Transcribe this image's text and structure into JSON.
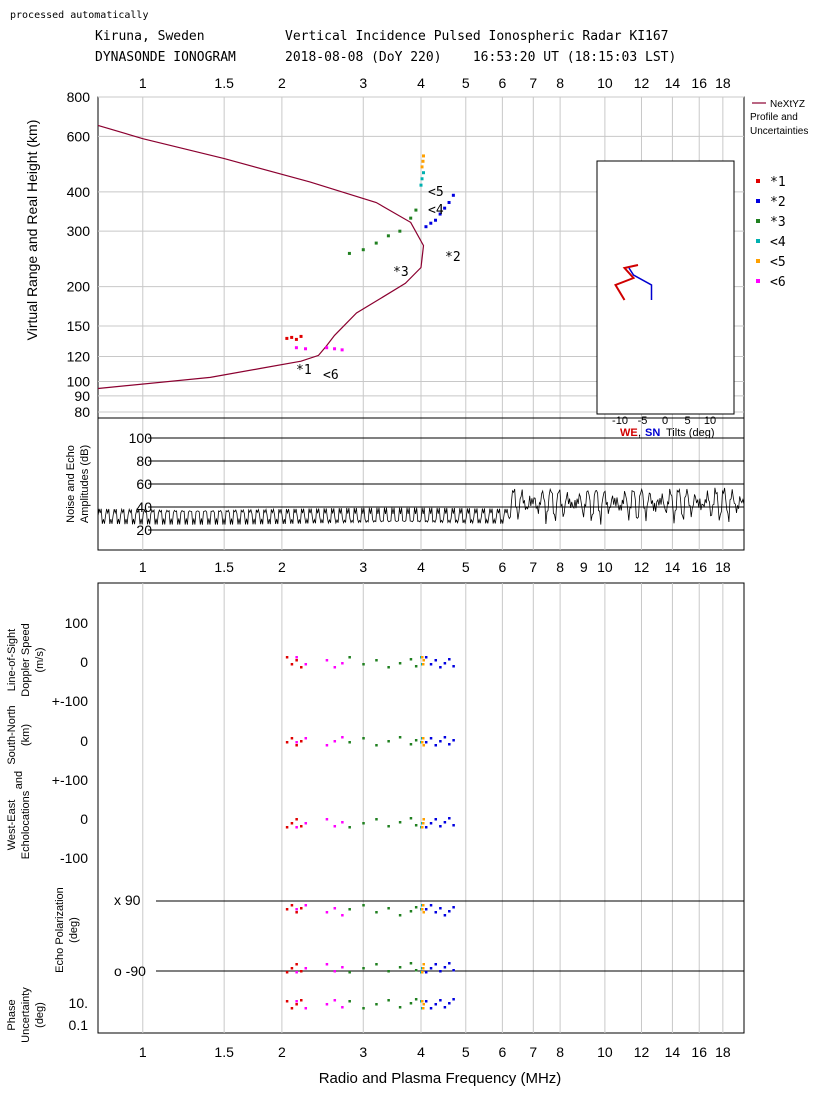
{
  "header": {
    "processed": "processed automatically",
    "station": "Kiruna, Sweden",
    "kind": "DYNASONDE IONOGRAM",
    "radar": "Vertical Incidence Pulsed Ionospheric Radar KI167",
    "datetime": "2018-08-08 (DoY 220)    16:53:20 UT (18:15:03 LST)"
  },
  "axes": {
    "freq_ticks": [
      "1",
      "1.5",
      "2",
      "3",
      "4",
      "5",
      "6",
      "7",
      "8",
      "10",
      "12",
      "14",
      "16",
      "18"
    ],
    "freq_ticks_mid": [
      "1",
      "1.5",
      "2",
      "3",
      "4",
      "5",
      "6",
      "7",
      "8",
      "9",
      "10",
      "12",
      "14",
      "16",
      "18"
    ],
    "freq_values": [
      1,
      1.5,
      2,
      3,
      4,
      5,
      6,
      7,
      8,
      10,
      12,
      14,
      16,
      18
    ],
    "freq_values_mid": [
      1,
      1.5,
      2,
      3,
      4,
      5,
      6,
      7,
      8,
      9,
      10,
      12,
      14,
      16,
      18
    ],
    "height_ticks": [
      "800",
      "600",
      "400",
      "300",
      "200",
      "150",
      "120",
      "100",
      "90",
      "80"
    ],
    "height_values": [
      800,
      600,
      400,
      300,
      200,
      150,
      120,
      100,
      90,
      80
    ],
    "amp_ticks": [
      "100",
      "80",
      "60",
      "40",
      "20"
    ],
    "amp_values": [
      100,
      80,
      60,
      40,
      20
    ],
    "height_label": "Virtual Range and Real Height (km)",
    "amp_label_1": "Noise and Echo",
    "amp_label_2": "Amplitudes (dB)",
    "x_label": "Radio and Plasma Frequency (MHz)",
    "doppler_label_1": "Line-of-Sight",
    "doppler_label_2": "Doppler Speed",
    "doppler_label_3": "(m/s)",
    "doppler_ticks": [
      "100",
      "0",
      "+-100"
    ],
    "sn_label_1": "South-North",
    "sn_label_2": "(km)",
    "sn_ticks": [
      "0",
      "+-100"
    ],
    "we_label_1": "West-East",
    "we_label_2": "Echolocations",
    "we_label_3": "and",
    "we_ticks": [
      "0",
      "-100"
    ],
    "pol_label_1": "Echo Polarization",
    "pol_label_2": "(deg)",
    "pol_x": "x  90",
    "pol_o": "o -90",
    "phase_label_1": "Phase",
    "phase_label_2": "Uncertainty",
    "phase_label_3": "(deg)",
    "phase_ticks": [
      "10.",
      "0.1"
    ]
  },
  "legend": {
    "profile_1": "NeXtYZ",
    "profile_2": "Profile and",
    "profile_3": "Uncertainties",
    "items": [
      {
        "label": "*1",
        "color": "#e00000"
      },
      {
        "label": "*2",
        "color": "#0000e0"
      },
      {
        "label": "*3",
        "color": "#208020"
      },
      {
        "label": "<4",
        "color": "#00b0b0"
      },
      {
        "label": "<5",
        "color": "#ffa000"
      },
      {
        "label": "<6",
        "color": "#ff00ff"
      }
    ]
  },
  "tilts": {
    "ticks": [
      "-10",
      "-5",
      "0",
      "5",
      "10"
    ],
    "we": "WE",
    "comma": ",",
    "sn": "SN",
    "label": "Tilts (deg)",
    "we_color": "#d00000",
    "sn_color": "#0000d0"
  },
  "annotations": {
    "a1": "*1",
    "a2": "*2",
    "a3": "*3",
    "a4": "<4",
    "a5": "<5",
    "a6": "<6"
  },
  "chart_data": {
    "type": "scatter",
    "x_scale": "log",
    "y_scale": "log",
    "xlim": [
      0.8,
      20
    ],
    "ylim": [
      80,
      800
    ],
    "xlabel": "Radio and Plasma Frequency (MHz)",
    "ylabel": "Virtual Range and Real Height (km)",
    "profile": {
      "color": "#8b0030",
      "points": [
        [
          0.8,
          95
        ],
        [
          1.4,
          103
        ],
        [
          1.8,
          110
        ],
        [
          2.2,
          116
        ],
        [
          2.4,
          121
        ],
        [
          2.5,
          130
        ],
        [
          2.6,
          140
        ],
        [
          2.9,
          165
        ],
        [
          3.3,
          185
        ],
        [
          3.7,
          205
        ],
        [
          4.0,
          230
        ],
        [
          4.05,
          270
        ],
        [
          3.8,
          320
        ],
        [
          3.2,
          370
        ],
        [
          2.3,
          430
        ],
        [
          1.5,
          510
        ],
        [
          1.0,
          590
        ],
        [
          0.8,
          650
        ]
      ]
    },
    "series": [
      {
        "name": "*1",
        "color": "#e00000",
        "points": [
          [
            2.05,
            137
          ],
          [
            2.1,
            138
          ],
          [
            2.15,
            136
          ],
          [
            2.2,
            139
          ]
        ]
      },
      {
        "name": "*2",
        "color": "#0000e0",
        "points": [
          [
            4.1,
            310
          ],
          [
            4.2,
            318
          ],
          [
            4.3,
            325
          ],
          [
            4.4,
            340
          ],
          [
            4.5,
            355
          ],
          [
            4.6,
            370
          ],
          [
            4.7,
            390
          ]
        ]
      },
      {
        "name": "*3",
        "color": "#208020",
        "points": [
          [
            2.8,
            255
          ],
          [
            3.0,
            262
          ],
          [
            3.2,
            275
          ],
          [
            3.4,
            290
          ],
          [
            3.6,
            300
          ],
          [
            3.8,
            330
          ],
          [
            3.9,
            350
          ]
        ]
      },
      {
        "name": "<4",
        "color": "#00b0b0",
        "points": [
          [
            4.0,
            420
          ],
          [
            4.02,
            440
          ],
          [
            4.05,
            460
          ]
        ]
      },
      {
        "name": "<5",
        "color": "#ffa000",
        "points": [
          [
            4.02,
            480
          ],
          [
            4.04,
            500
          ],
          [
            4.05,
            520
          ]
        ]
      },
      {
        "name": "<6",
        "color": "#ff00ff",
        "points": [
          [
            2.15,
            128
          ],
          [
            2.25,
            127
          ],
          [
            2.5,
            128
          ],
          [
            2.6,
            127
          ],
          [
            2.7,
            126
          ]
        ]
      }
    ]
  }
}
